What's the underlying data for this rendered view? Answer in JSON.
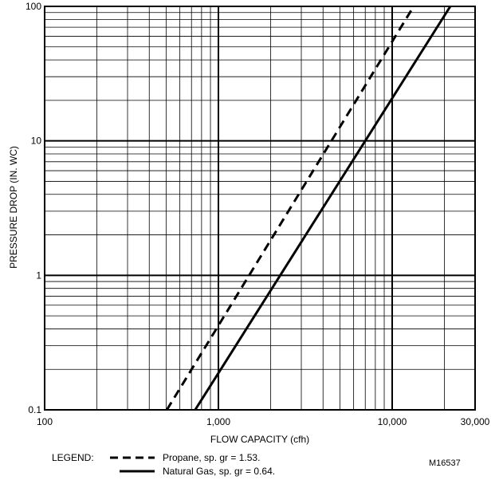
{
  "chart_data": {
    "type": "line",
    "xlabel": "FLOW CAPACITY (cfh)",
    "ylabel": "PRESSURE DROP (IN. WC)",
    "x_scale": "log",
    "y_scale": "log",
    "xlim": [
      100,
      30000
    ],
    "ylim": [
      0.1,
      100
    ],
    "x_ticks": [
      {
        "value": 100,
        "label": "100"
      },
      {
        "value": 1000,
        "label": "1,000"
      },
      {
        "value": 10000,
        "label": "10,000"
      },
      {
        "value": 30000,
        "label": "30,000"
      }
    ],
    "y_ticks": [
      {
        "value": 0.1,
        "label": "0.1"
      },
      {
        "value": 1,
        "label": "1"
      },
      {
        "value": 10,
        "label": "10"
      },
      {
        "value": 100,
        "label": "100"
      }
    ],
    "grid": true,
    "series": [
      {
        "name": "Propane, sp. gr = 1.53.",
        "style": "dashed",
        "color": "#000000",
        "points": [
          [
            505,
            0.1
          ],
          [
            13300,
            100
          ]
        ]
      },
      {
        "name": "Natural Gas, sp. gr = 0.64.",
        "style": "solid",
        "color": "#000000",
        "points": [
          [
            735,
            0.1
          ],
          [
            21600,
            100
          ]
        ]
      }
    ],
    "legend": {
      "title": "LEGEND:",
      "placement": "bottom"
    },
    "figure_id": "M16537"
  }
}
